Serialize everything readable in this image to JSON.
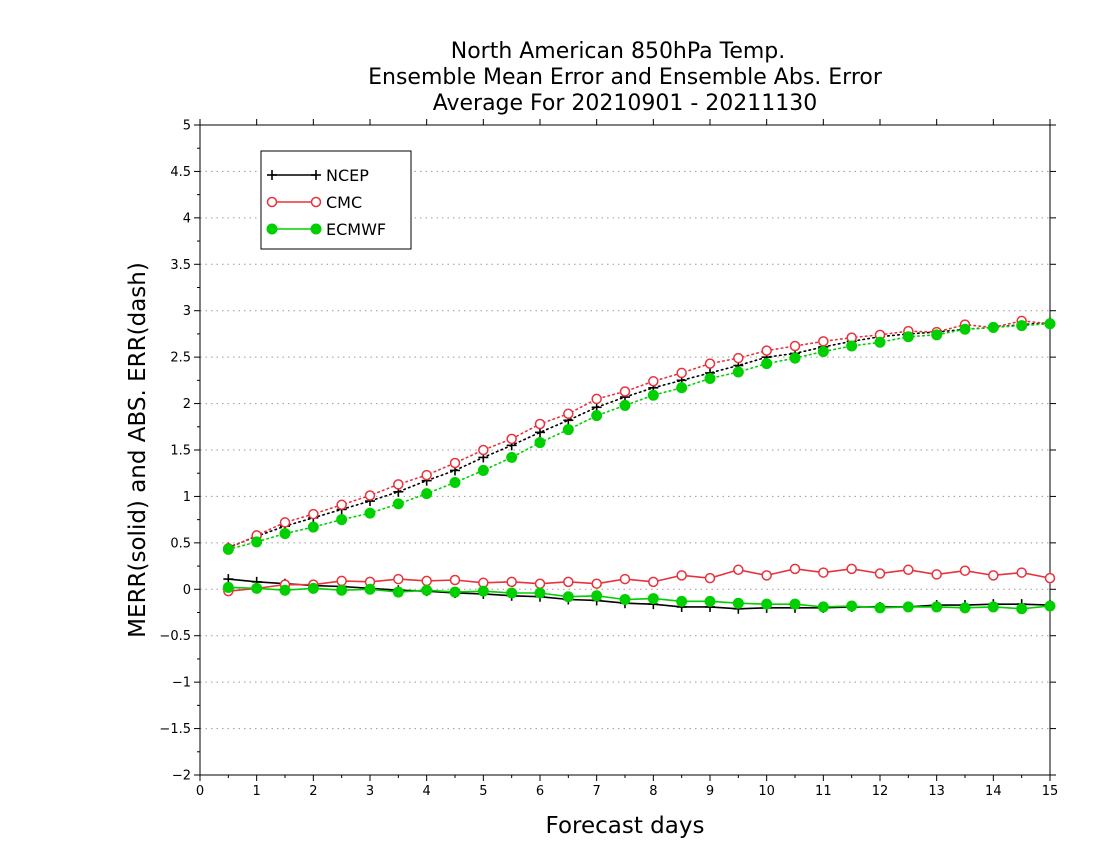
{
  "chart_data": {
    "type": "line",
    "title": [
      "North American 850hPa Temp.",
      "Ensemble Mean Error and Ensemble Abs. Error",
      "Average For 20210901 - 20211130"
    ],
    "xlabel": "Forecast days",
    "ylabel": "MERR(solid) and ABS. ERR(dash)",
    "xlim": [
      0,
      15
    ],
    "ylim": [
      -2,
      5
    ],
    "x_ticks": [
      0,
      1,
      2,
      3,
      4,
      5,
      6,
      7,
      8,
      9,
      10,
      11,
      12,
      13,
      14,
      15
    ],
    "x_tick_labels": [
      "0",
      "1",
      "2",
      "3",
      "4",
      "5",
      "6",
      "7",
      "8",
      "9",
      "10",
      "11",
      "12",
      "13",
      "14",
      "15"
    ],
    "y_ticks": [
      -2,
      -1.5,
      -1,
      -0.5,
      0,
      0.5,
      1,
      1.5,
      2,
      2.5,
      3,
      3.5,
      4,
      4.5,
      5
    ],
    "y_tick_labels": [
      "−2",
      "−1.5",
      "−1",
      "−0.5",
      "0",
      "0.5",
      "1",
      "1.5",
      "2",
      "2.5",
      "3",
      "3.5",
      "4",
      "4.5",
      "5"
    ],
    "grid": "horizontal dotted",
    "legend_position": "top-left",
    "x": [
      0.5,
      1,
      1.5,
      2,
      2.5,
      3,
      3.5,
      4,
      4.5,
      5,
      5.5,
      6,
      6.5,
      7,
      7.5,
      8,
      8.5,
      9,
      9.5,
      10,
      10.5,
      11,
      11.5,
      12,
      12.5,
      13,
      13.5,
      14,
      14.5,
      15
    ],
    "series": [
      {
        "name": "NCEP",
        "color": "#000000",
        "marker": "plus",
        "merr": [
          0.11,
          0.08,
          0.06,
          0.04,
          0.03,
          0.01,
          -0.01,
          -0.02,
          -0.04,
          -0.05,
          -0.07,
          -0.08,
          -0.11,
          -0.12,
          -0.15,
          -0.16,
          -0.19,
          -0.19,
          -0.21,
          -0.2,
          -0.2,
          -0.2,
          -0.19,
          -0.19,
          -0.19,
          -0.17,
          -0.17,
          -0.16,
          -0.16,
          -0.17
        ],
        "abs_err": [
          0.45,
          0.57,
          0.68,
          0.77,
          0.86,
          0.95,
          1.05,
          1.17,
          1.28,
          1.42,
          1.55,
          1.69,
          1.82,
          1.96,
          2.07,
          2.17,
          2.25,
          2.33,
          2.41,
          2.5,
          2.54,
          2.61,
          2.67,
          2.72,
          2.75,
          2.77,
          2.8,
          2.82,
          2.85,
          2.87
        ]
      },
      {
        "name": "CMC",
        "color": "#e8323c",
        "marker": "open-circle",
        "merr": [
          -0.02,
          0.01,
          0.05,
          0.05,
          0.09,
          0.08,
          0.11,
          0.09,
          0.1,
          0.07,
          0.08,
          0.06,
          0.08,
          0.06,
          0.11,
          0.08,
          0.15,
          0.12,
          0.21,
          0.15,
          0.22,
          0.18,
          0.22,
          0.17,
          0.21,
          0.16,
          0.2,
          0.15,
          0.18,
          0.12
        ],
        "abs_err": [
          0.44,
          0.58,
          0.72,
          0.81,
          0.91,
          1.01,
          1.13,
          1.23,
          1.36,
          1.5,
          1.62,
          1.78,
          1.89,
          2.05,
          2.13,
          2.24,
          2.33,
          2.43,
          2.49,
          2.57,
          2.62,
          2.67,
          2.71,
          2.74,
          2.78,
          2.77,
          2.85,
          2.82,
          2.89,
          2.86
        ]
      },
      {
        "name": "ECMWF",
        "color": "#00d000",
        "marker": "filled-circle",
        "merr": [
          0.02,
          0.01,
          -0.01,
          0.01,
          -0.01,
          0.0,
          -0.03,
          -0.01,
          -0.03,
          -0.02,
          -0.04,
          -0.04,
          -0.08,
          -0.07,
          -0.11,
          -0.1,
          -0.13,
          -0.13,
          -0.15,
          -0.16,
          -0.16,
          -0.19,
          -0.18,
          -0.2,
          -0.19,
          -0.19,
          -0.2,
          -0.19,
          -0.21,
          -0.18
        ],
        "abs_err": [
          0.43,
          0.51,
          0.6,
          0.67,
          0.75,
          0.82,
          0.92,
          1.03,
          1.15,
          1.28,
          1.42,
          1.58,
          1.72,
          1.87,
          1.98,
          2.09,
          2.17,
          2.27,
          2.34,
          2.43,
          2.49,
          2.56,
          2.62,
          2.66,
          2.72,
          2.74,
          2.8,
          2.82,
          2.84,
          2.86
        ]
      }
    ]
  }
}
